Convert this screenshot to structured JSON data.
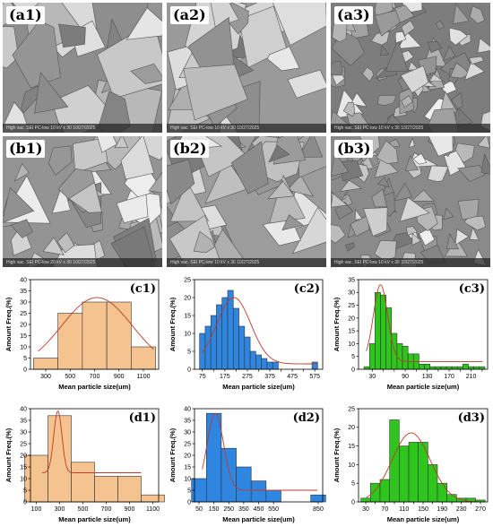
{
  "sem_images": [
    {
      "id": "a1",
      "label": "(a1)",
      "tone": "#8e8e8e",
      "scale": "High vac.   SEI   PC-low   10 kV   x 30   10/27/2025"
    },
    {
      "id": "a2",
      "label": "(a2)",
      "tone": "#9a9a9a",
      "scale": "High vac.   SEI   PC-low   10 kV   x 30   10/27/2025"
    },
    {
      "id": "a3",
      "label": "(a3)",
      "tone": "#7d7d7d",
      "scale": "High vac.   SEI   PC-low   10 kV   x 30   10/27/2025"
    },
    {
      "id": "b1",
      "label": "(b1)",
      "tone": "#949494",
      "scale": "High vac.   SEI   PC-low   20 kV   x 30   10/27/2025"
    },
    {
      "id": "b2",
      "label": "(b2)",
      "tone": "#9c9c9c",
      "scale": "High vac.   SEI   PC-low   10 kV   x 30   10/27/2025"
    },
    {
      "id": "b3",
      "label": "(b3)",
      "tone": "#8a8a8a",
      "scale": "High vac.   SEI   PC-low   10 kV   x 30   10/27/2025"
    }
  ],
  "colors": {
    "orange": "#f5c38f",
    "blue": "#2e86e0",
    "green": "#2ec51c",
    "curve": "#c0392b"
  },
  "chart_data": [
    {
      "id": "c1",
      "label": "(c1)",
      "type": "bar",
      "color": "orange",
      "ylabel": "Amount Freq.(%)",
      "xlabel": "Mean particle size(um)",
      "ylim": [
        0,
        40
      ],
      "yticks": [
        0,
        5,
        10,
        15,
        20,
        25,
        30,
        35,
        40
      ],
      "xlim": [
        175,
        1225
      ],
      "xticks": [
        300,
        500,
        700,
        900,
        1100
      ],
      "binwidth": 200,
      "x": [
        300,
        500,
        700,
        900,
        1100
      ],
      "values": [
        5,
        25,
        30,
        30,
        10
      ],
      "fit": {
        "type": "gauss",
        "mu": 720,
        "sigma": 290,
        "peak": 32,
        "base": 0
      }
    },
    {
      "id": "c2",
      "label": "(c2)",
      "type": "bar",
      "color": "blue",
      "ylabel": "Amount Freq.(%)",
      "xlabel": "Mean particle size(um)",
      "ylim": [
        0,
        25
      ],
      "yticks": [
        0,
        5,
        10,
        15,
        20,
        25
      ],
      "xlim": [
        40,
        610
      ],
      "xticks": [
        75,
        125,
        175,
        225,
        275,
        325,
        375,
        425,
        475,
        525,
        575
      ],
      "xticklabels": [
        75,
        175,
        275,
        375,
        475,
        575
      ],
      "binwidth": 25,
      "x": [
        75,
        100,
        125,
        150,
        175,
        200,
        225,
        250,
        275,
        300,
        325,
        350,
        375,
        400,
        425,
        450,
        475,
        500,
        525,
        550,
        575
      ],
      "values": [
        10,
        12,
        15,
        18,
        20,
        22,
        17,
        12,
        9,
        5,
        4,
        3,
        2,
        2,
        0,
        0,
        0,
        0,
        0,
        0,
        2
      ],
      "fit": {
        "type": "gauss",
        "mu": 215,
        "sigma": 75,
        "peak": 20,
        "base": 1.5
      }
    },
    {
      "id": "c3",
      "label": "(c3)",
      "type": "bar",
      "color": "green",
      "ylabel": "Amount Freq.(%)",
      "xlabel": "Mean particle size(um)",
      "ylim": [
        0,
        35
      ],
      "yticks": [
        0,
        5,
        10,
        15,
        20,
        25,
        30,
        35
      ],
      "xlim": [
        5,
        240
      ],
      "xticks": [
        30,
        50,
        70,
        90,
        110,
        130,
        150,
        170,
        190,
        210,
        230
      ],
      "xticklabels": [
        30,
        90,
        130,
        170,
        210
      ],
      "binwidth": 10,
      "x": [
        20,
        30,
        40,
        50,
        60,
        70,
        80,
        90,
        100,
        110,
        120,
        130,
        140,
        150,
        160,
        170,
        180,
        190,
        200,
        210,
        220,
        230
      ],
      "values": [
        1,
        10,
        30,
        29,
        24,
        14,
        10,
        9,
        6,
        6,
        2,
        2,
        1,
        1,
        1,
        1,
        1,
        1,
        2,
        1,
        1,
        1
      ],
      "fit": {
        "type": "gauss",
        "mu": 45,
        "sigma": 13,
        "peak": 33,
        "base": 3
      }
    },
    {
      "id": "d1",
      "label": "(d1)",
      "type": "bar",
      "color": "orange",
      "ylabel": "Amount Freq.(%)",
      "xlabel": "Mean particle size(um)",
      "ylim": [
        0,
        40
      ],
      "yticks": [
        0,
        5,
        10,
        15,
        20,
        25,
        30,
        35,
        40
      ],
      "xlim": [
        50,
        1150
      ],
      "xticks": [
        100,
        300,
        500,
        700,
        900,
        1100
      ],
      "binwidth": 200,
      "x": [
        100,
        300,
        500,
        700,
        900,
        1100
      ],
      "values": [
        20,
        37,
        17,
        11,
        11,
        3
      ],
      "fit": {
        "type": "gauss",
        "mu": 285,
        "sigma": 35,
        "peak": 39,
        "base": 12.5,
        "start": 150,
        "end": 1000
      }
    },
    {
      "id": "d2",
      "label": "(d2)",
      "type": "bar",
      "color": "blue",
      "ylabel": "Amount Freq.(%)",
      "xlabel": "Mean particle size(um)",
      "ylim": [
        0,
        40
      ],
      "yticks": [
        0,
        5,
        10,
        15,
        20,
        25,
        30,
        35,
        40
      ],
      "xlim": [
        20,
        880
      ],
      "xticks": [
        50,
        150,
        250,
        350,
        450,
        550,
        850
      ],
      "xticklabels": [
        50,
        150,
        250,
        350,
        450,
        550,
        850
      ],
      "binwidth": 100,
      "x": [
        50,
        150,
        250,
        350,
        450,
        550,
        650,
        750,
        850
      ],
      "values": [
        10,
        38,
        23,
        15,
        9,
        5,
        0,
        0,
        3
      ],
      "fit": {
        "type": "gauss",
        "mu": 160,
        "sigma": 55,
        "peak": 38,
        "base": 5
      }
    },
    {
      "id": "d3",
      "label": "(d3)",
      "type": "bar",
      "color": "green",
      "ylabel": "Amount Freq.(%)",
      "xlabel": "Mean particle size(um)",
      "ylim": [
        0,
        25
      ],
      "yticks": [
        0,
        5,
        10,
        15,
        20,
        25
      ],
      "xlim": [
        15,
        285
      ],
      "xticks": [
        30,
        50,
        70,
        90,
        110,
        130,
        150,
        170,
        190,
        210,
        230,
        250,
        270
      ],
      "xticklabels": [
        30,
        70,
        110,
        150,
        190,
        230,
        270
      ],
      "binwidth": 20,
      "x": [
        30,
        50,
        70,
        90,
        110,
        130,
        150,
        170,
        190,
        210,
        230,
        250,
        270
      ],
      "values": [
        1,
        5,
        6,
        22,
        15,
        16,
        16,
        10,
        5,
        2,
        1,
        1,
        0.5
      ],
      "fit": {
        "type": "gauss",
        "mu": 125,
        "sigma": 40,
        "peak": 18.5,
        "base": 0
      }
    }
  ]
}
